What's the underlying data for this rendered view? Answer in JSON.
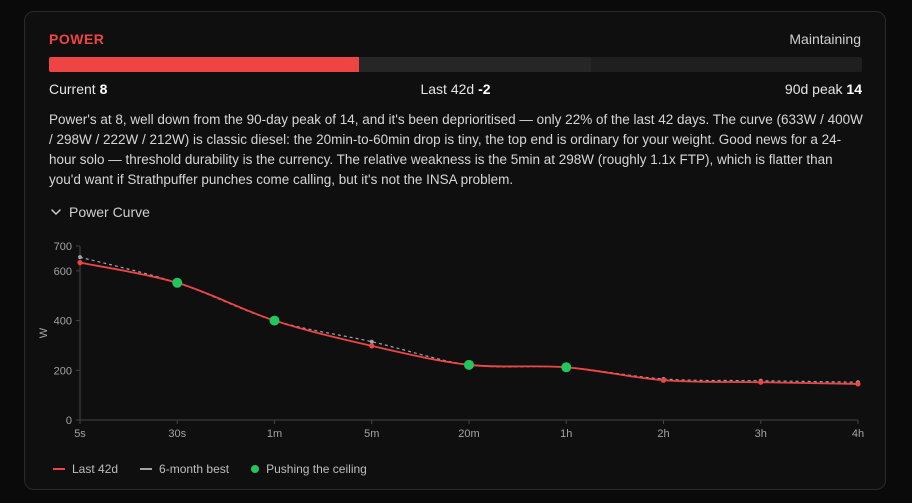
{
  "card": {
    "title": "POWER",
    "status": "Maintaining",
    "progress": {
      "current": 8,
      "peak": 14,
      "scale_max": 21
    },
    "labels": {
      "current_label": "Current",
      "current_value": "8",
      "last_label": "Last 42d",
      "last_value": "-2",
      "peak_label": "90d peak",
      "peak_value": "14"
    },
    "description": "Power's at 8, well down from the 90-day peak of 14, and it's been deprioritised — only 22% of the last 42 days. The curve (633W / 400W / 298W / 222W / 212W) is classic diesel: the 20min-to-60min drop is tiny, the top end is ordinary for your weight. Good news for a 24-hour solo — threshold durability is the currency. The relative weakness is the 5min at 298W (roughly 1.1x FTP), which is flatter than you'd want if Strathpuffer punches come calling, but it's not the INSA problem.",
    "curve_toggle_label": "Power Curve",
    "chevron_icon": "chevron-down-icon"
  },
  "chart_data": {
    "type": "line",
    "categories": [
      "5s",
      "30s",
      "1m",
      "5m",
      "20m",
      "1h",
      "2h",
      "3h",
      "4h"
    ],
    "ylabel": "W",
    "yticks": [
      0,
      200,
      400,
      600,
      700
    ],
    "ylim": [
      0,
      700
    ],
    "series": [
      {
        "name": "Last 42d",
        "values": [
          633,
          552,
          400,
          298,
          222,
          212,
          160,
          152,
          145
        ],
        "color": "#ef4444",
        "style": "solid"
      },
      {
        "name": "6-month best",
        "values": [
          655,
          552,
          400,
          315,
          222,
          212,
          165,
          158,
          152
        ],
        "color": "#9ca3af",
        "style": "dashed"
      }
    ],
    "highlight": {
      "name": "Pushing the ceiling",
      "indices": [
        1,
        2,
        4,
        5
      ],
      "color": "#22c55e"
    },
    "legend_position": "bottom-left"
  }
}
